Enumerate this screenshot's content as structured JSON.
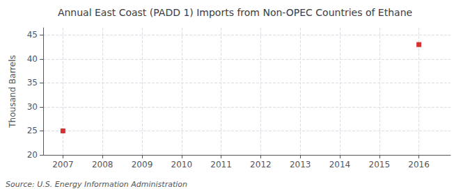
{
  "chart_data": {
    "type": "scatter",
    "title": "Annual East Coast (PADD 1) Imports from Non-OPEC Countries of Ethane",
    "ylabel": "Thousand Barrels",
    "annotations": [
      "Source: U.S. Energy Information Administration"
    ],
    "x": [
      2007,
      2016
    ],
    "values": [
      25.0,
      43.0
    ],
    "color": "#cc0000",
    "marker": "square",
    "xlim": [
      2006.5,
      2016.8
    ],
    "ylim": [
      20,
      46.5
    ],
    "xticks": [
      2007,
      2008,
      2009,
      2010,
      2011,
      2012,
      2013,
      2014,
      2015,
      2016
    ],
    "yticks": [
      20,
      25,
      30,
      35,
      40,
      45
    ],
    "grid": true
  }
}
